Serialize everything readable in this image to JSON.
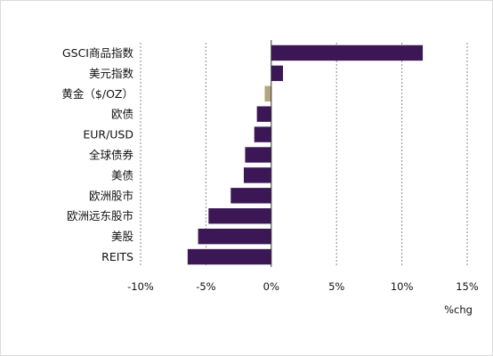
{
  "chart_data": {
    "type": "bar",
    "orientation": "horizontal",
    "categories": [
      "GSCI商品指数",
      "美元指数",
      "黄金（$/OZ）",
      "欧债",
      "EUR/USD",
      "全球债券",
      "美债",
      "欧洲股市",
      "欧洲远东股市",
      "美股",
      "REITS"
    ],
    "values": [
      11.6,
      0.9,
      -0.5,
      -1.1,
      -1.3,
      -2.0,
      -2.1,
      -3.1,
      -4.8,
      -5.6,
      -6.4
    ],
    "bar_colors": [
      "#3b1755",
      "#3b1755",
      "#b5a57a",
      "#3b1755",
      "#3b1755",
      "#3b1755",
      "#3b1755",
      "#3b1755",
      "#3b1755",
      "#3b1755",
      "#3b1755"
    ],
    "xlim": [
      -10,
      15
    ],
    "ticks": [
      -10,
      -5,
      0,
      5,
      10,
      15
    ],
    "tick_labels": [
      "-10%",
      "-5%",
      "0%",
      "5%",
      "10%",
      "15%"
    ],
    "xlabel": "%chg",
    "grid": true,
    "legend": "none"
  }
}
